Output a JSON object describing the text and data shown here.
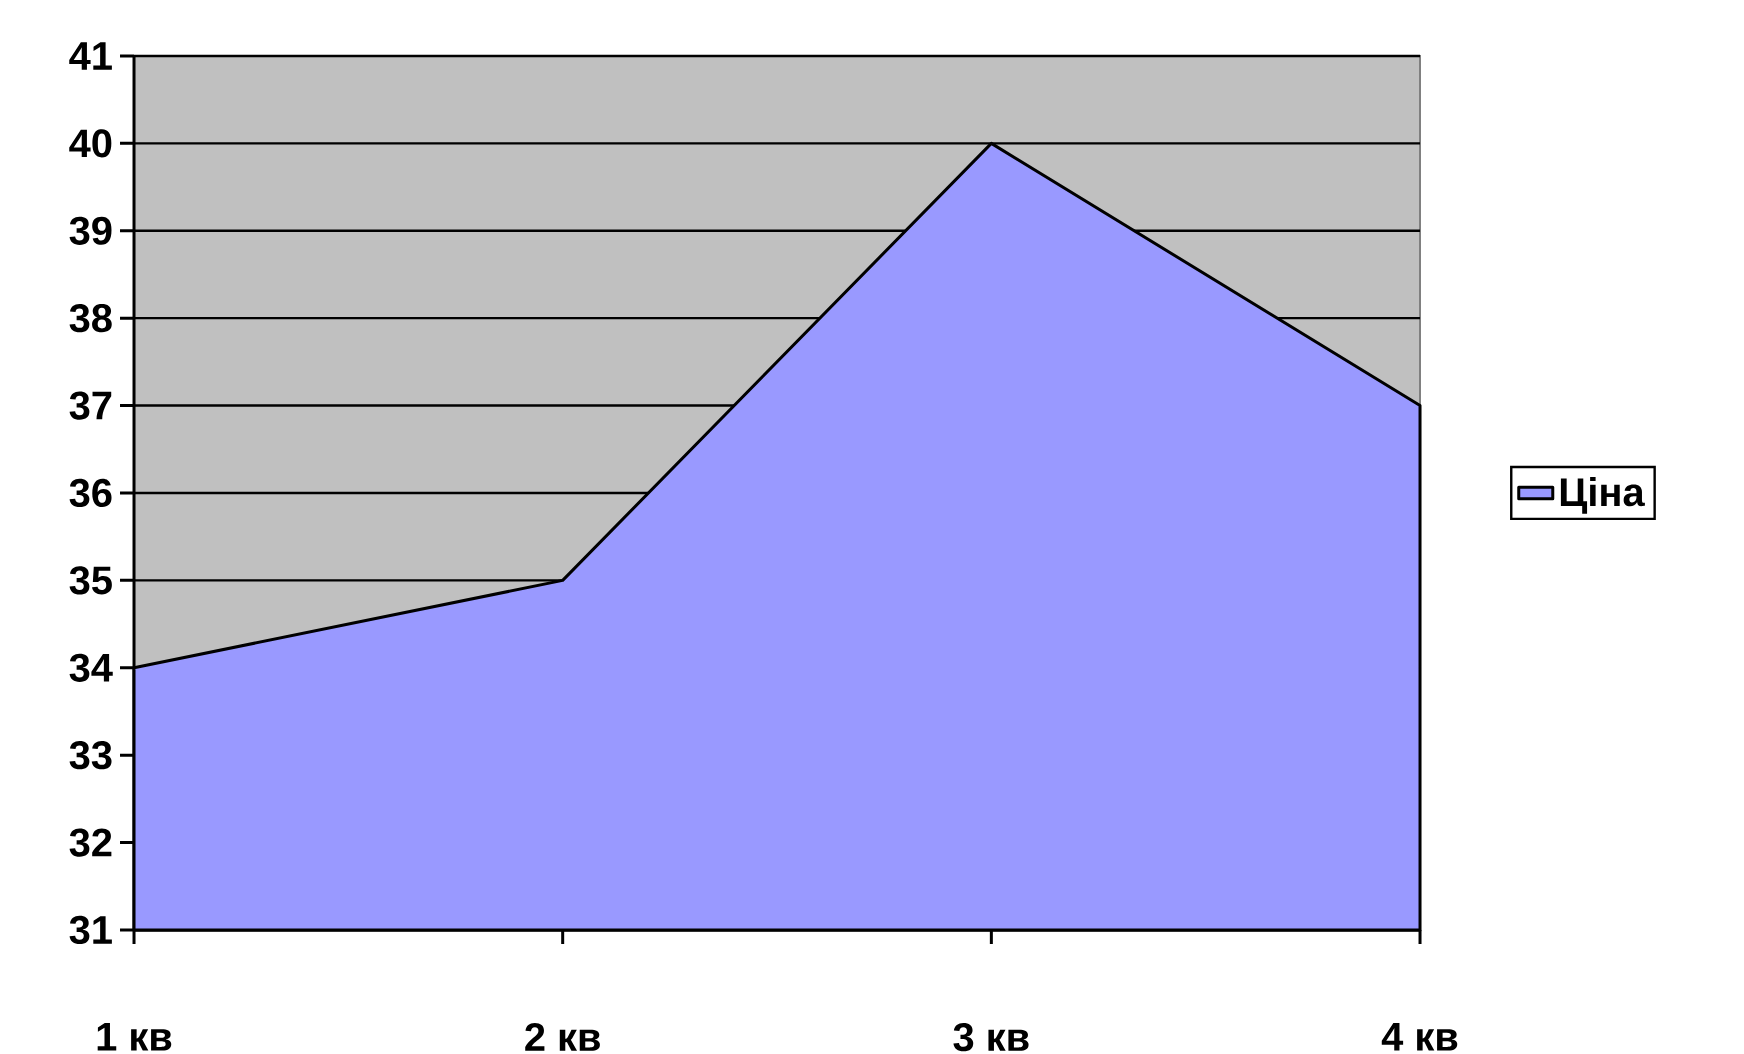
{
  "chart_data": {
    "type": "area",
    "categories": [
      "1 кв",
      "2 кв",
      "3 кв",
      "4 кв"
    ],
    "series": [
      {
        "name": "Ціна",
        "color": "#9999ff",
        "values": [
          34,
          35,
          40,
          37
        ]
      }
    ],
    "ylim": [
      31,
      41
    ],
    "yticks": [
      31,
      32,
      33,
      34,
      35,
      36,
      37,
      38,
      39,
      40,
      41
    ],
    "grid": "y",
    "legend": "right"
  }
}
